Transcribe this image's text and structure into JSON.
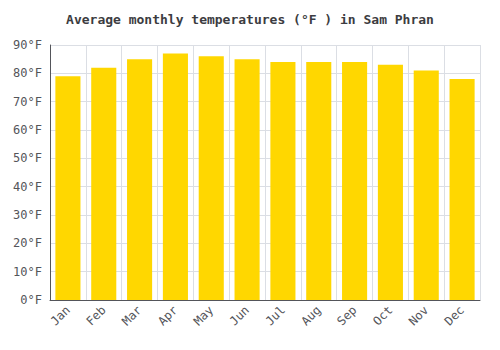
{
  "chart_data": {
    "type": "bar",
    "title": "Average monthly temperatures (°F ) in Sam Phran",
    "categories": [
      "Jan",
      "Feb",
      "Mar",
      "Apr",
      "May",
      "Jun",
      "Jul",
      "Aug",
      "Sep",
      "Oct",
      "Nov",
      "Dec"
    ],
    "values": [
      79,
      82,
      85,
      87,
      86,
      85,
      84,
      84,
      84,
      83,
      81,
      78
    ],
    "color": "#FFD700",
    "ylim": [
      0,
      90
    ],
    "yticks": [
      {
        "value": 0,
        "label": "0°F"
      },
      {
        "value": 10,
        "label": "10°F"
      },
      {
        "value": 20,
        "label": "20°F"
      },
      {
        "value": 30,
        "label": "30°F"
      },
      {
        "value": 40,
        "label": "40°F"
      },
      {
        "value": 50,
        "label": "50°F"
      },
      {
        "value": 60,
        "label": "60°F"
      },
      {
        "value": 70,
        "label": "70°F"
      },
      {
        "value": 80,
        "label": "80°F"
      },
      {
        "value": 90,
        "label": "90°F"
      }
    ],
    "grid": true
  }
}
